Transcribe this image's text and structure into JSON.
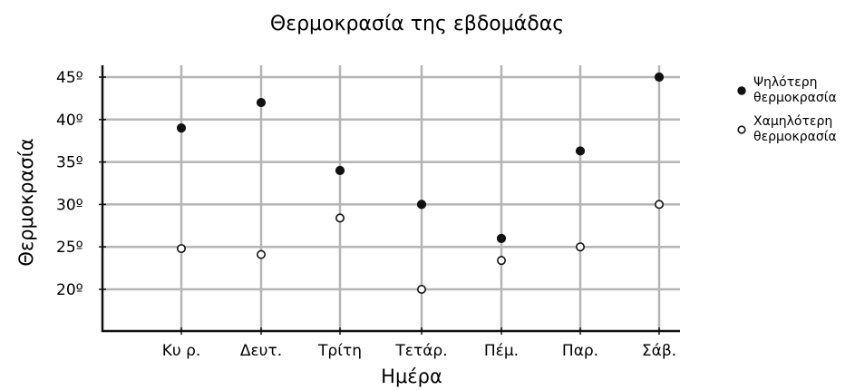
{
  "chart_data": {
    "type": "scatter",
    "title": "Θερμοκρασία της εβδομάδας",
    "xlabel": "Ημέρα",
    "ylabel": "Θερμοκρασία",
    "categories": [
      "Κυ ρ.",
      "Δευτ.",
      "Τρίτη",
      "Τετάρ.",
      "Πέμ.",
      "Παρ.",
      "Σάβ."
    ],
    "y_ticks": [
      "20º",
      "25º",
      "30º",
      "35º",
      "40º",
      "45º"
    ],
    "y_tick_values": [
      20,
      25,
      30,
      35,
      40,
      45
    ],
    "ylim": [
      15,
      45
    ],
    "grid": true,
    "legend_position": "right",
    "series": [
      {
        "name": "Ψηλότερη θερμοκρασία",
        "legend_lines": [
          "Ψηλότερη",
          "θερμοκρασία"
        ],
        "marker": "filled",
        "color": "#111111",
        "values": [
          39,
          42,
          34,
          30,
          26,
          36.3,
          45
        ]
      },
      {
        "name": "Χαμηλότερη θερμοκρασία",
        "legend_lines": [
          "Χαμηλότερη",
          "θερμοκρασία"
        ],
        "marker": "hollow",
        "color": "#111111",
        "values": [
          24.8,
          24.1,
          28.4,
          20,
          23.4,
          25,
          30
        ]
      }
    ]
  }
}
